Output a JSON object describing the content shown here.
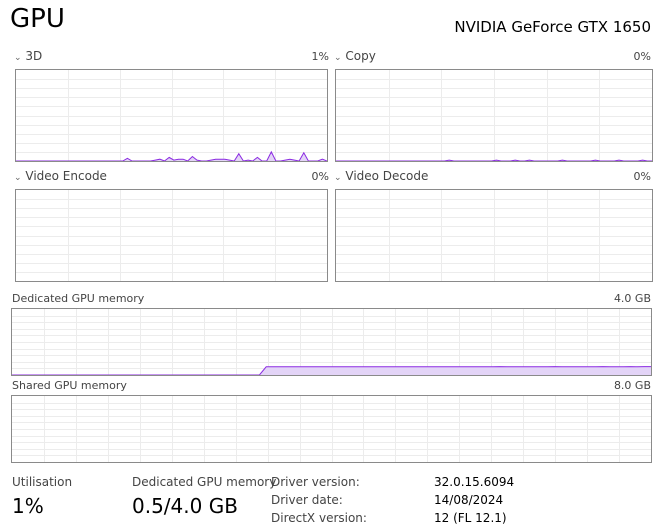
{
  "title": "GPU",
  "gpu_name": "NVIDIA GeForce GTX 1650",
  "engines": [
    {
      "label": "3D",
      "percent": "1%",
      "values": [
        0,
        0,
        0,
        0,
        0,
        0,
        0,
        0,
        0,
        0,
        0,
        0,
        0,
        0,
        0,
        0,
        0,
        0,
        0,
        0,
        0,
        0,
        0,
        0,
        3,
        0,
        0,
        0,
        0,
        0,
        1,
        2,
        0,
        4,
        1,
        2,
        2,
        0,
        5,
        1,
        0,
        0,
        1,
        2,
        2,
        2,
        1,
        0,
        8,
        0,
        1,
        0,
        4,
        0,
        0,
        10,
        0,
        0,
        1,
        2,
        1,
        0,
        9,
        0,
        0,
        0,
        2,
        0
      ]
    },
    {
      "label": "Copy",
      "percent": "0%",
      "values": [
        0,
        0,
        0,
        0,
        0,
        0,
        0,
        0,
        0,
        0,
        0,
        0,
        0,
        0,
        0,
        0,
        0,
        0,
        0,
        0,
        0,
        0,
        0,
        0,
        1,
        0,
        0,
        0,
        0,
        0,
        0,
        0,
        0,
        0,
        1,
        0,
        0,
        0,
        1,
        0,
        0,
        1,
        0,
        0,
        0,
        0,
        0,
        0,
        1,
        0,
        0,
        0,
        0,
        0,
        0,
        1,
        0,
        0,
        0,
        0,
        1,
        0,
        0,
        0,
        0,
        1,
        0,
        0
      ]
    },
    {
      "label": "Video Encode",
      "percent": "0%",
      "values": []
    },
    {
      "label": "Video Decode",
      "percent": "0%",
      "values": []
    }
  ],
  "dedicated_memory": {
    "label": "Dedicated GPU memory",
    "max": "4.0 GB",
    "values_gb": [
      0,
      0,
      0,
      0,
      0,
      0,
      0,
      0,
      0,
      0,
      0,
      0,
      0,
      0,
      0,
      0,
      0,
      0,
      0,
      0,
      0,
      0,
      0,
      0,
      0,
      0,
      0,
      0,
      0,
      0,
      0,
      0,
      0,
      0,
      0,
      0,
      0,
      0.5,
      0.5,
      0.5,
      0.5,
      0.5,
      0.5,
      0.5,
      0.5,
      0.5,
      0.5,
      0.5,
      0.5,
      0.5,
      0.5,
      0.5,
      0.5,
      0.5,
      0.5,
      0.5,
      0.5,
      0.5,
      0.5,
      0.5,
      0.5,
      0.5,
      0.5,
      0.5,
      0.5,
      0.5,
      0.5,
      0.5,
      0.5,
      0.5,
      0.5,
      0.51,
      0.5,
      0.5,
      0.5,
      0.5,
      0.5,
      0.5,
      0.5,
      0.51,
      0.5,
      0.5,
      0.5,
      0.5,
      0.5,
      0.5,
      0.51,
      0.5,
      0.5,
      0.5,
      0.51,
      0.5,
      0.51,
      0.51
    ]
  },
  "shared_memory": {
    "label": "Shared GPU memory",
    "max": "8.0 GB"
  },
  "stats": {
    "utilisation_label": "Utilisation",
    "utilisation": "1%",
    "dedicated_label": "Dedicated GPU memory",
    "dedicated": "0.5/4.0 GB",
    "driver_version_label": "Driver version:",
    "driver_version": "32.0.15.6094",
    "driver_date_label": "Driver date:",
    "driver_date": "14/08/2024",
    "directx_label": "DirectX version:",
    "directx": "12 (FL 12.1)"
  },
  "colors": {
    "line": "#8b2be2",
    "fill": "#e3d4f7",
    "grid": "#ececec",
    "border": "#8a8a8a"
  }
}
